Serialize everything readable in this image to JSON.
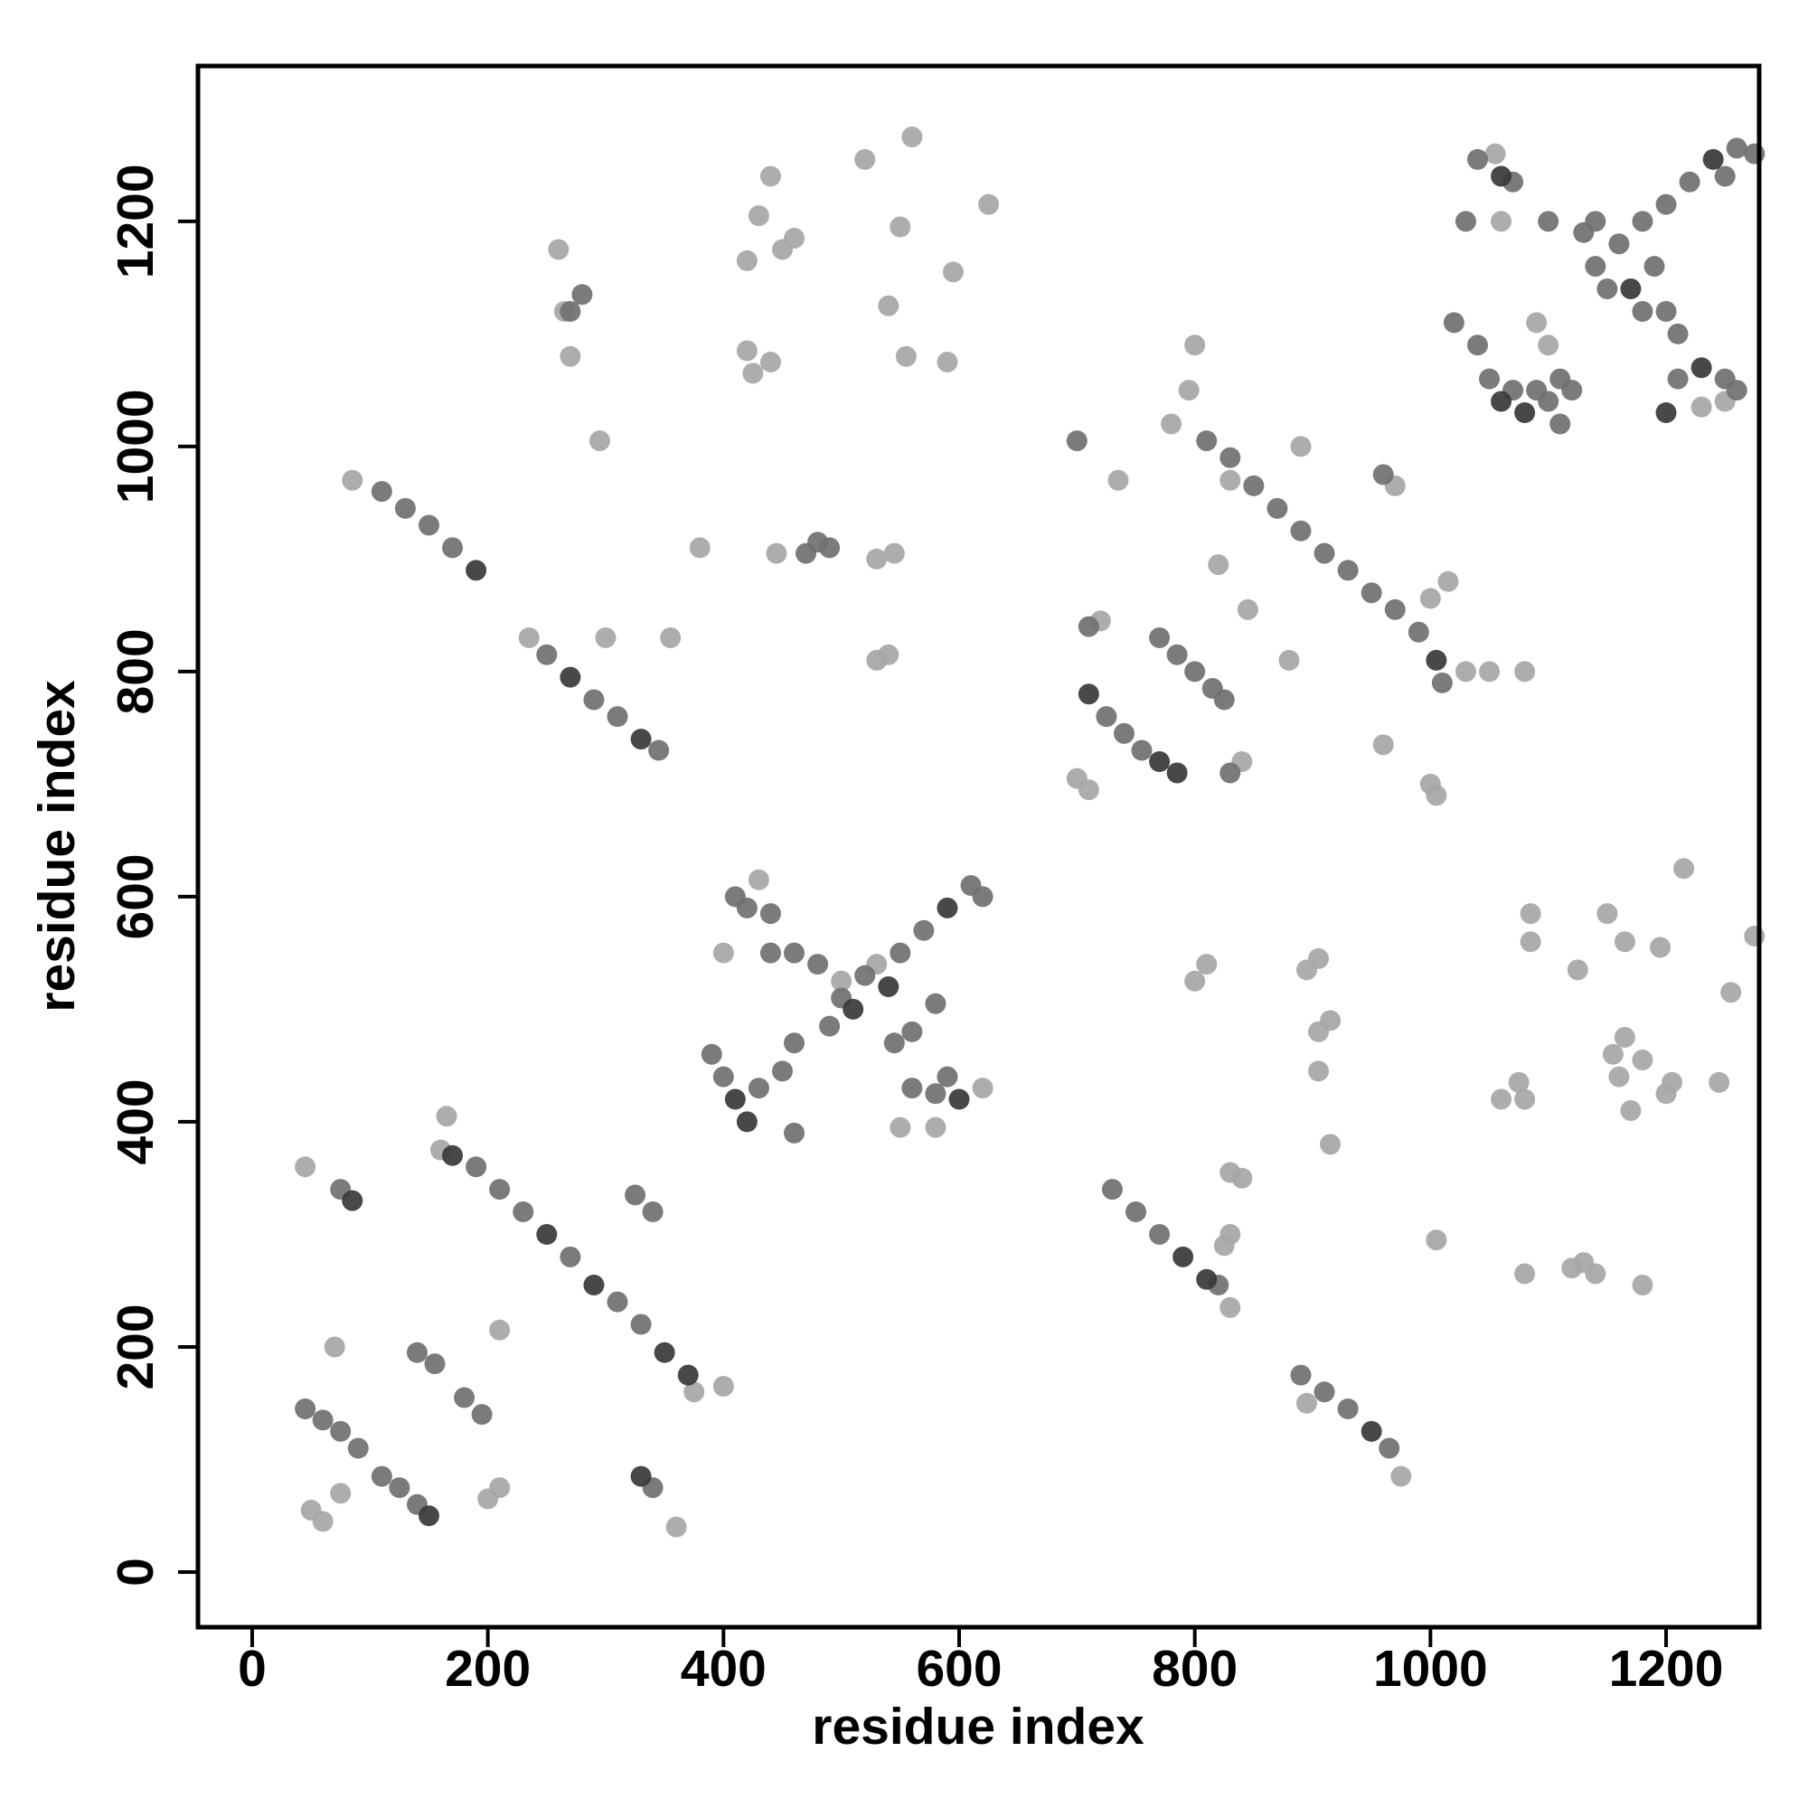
{
  "chart_data": {
    "type": "scatter",
    "x_label": "residue index",
    "y_label": "residue index",
    "xlim": [
      -46,
      1279
    ],
    "ylim": [
      -49,
      1338
    ],
    "xticks": [
      0,
      200,
      400,
      600,
      800,
      1000,
      1200
    ],
    "yticks": [
      0,
      200,
      400,
      600,
      800,
      1000,
      1200
    ],
    "series": [
      {
        "color": "#a6a6a6",
        "x": [
          400,
          375,
          360,
          70,
          200,
          210,
          45,
          50,
          60,
          75,
          165,
          160,
          210,
          85,
          235,
          300,
          355,
          260,
          265,
          270,
          295,
          420,
          440,
          430,
          450,
          460,
          420,
          425,
          440,
          520,
          560,
          550,
          540,
          595,
          625,
          555,
          590,
          380,
          445,
          530,
          545,
          530,
          540,
          530,
          500,
          430,
          400,
          620,
          580,
          550,
          800,
          810,
          830,
          840,
          830,
          825,
          830,
          975,
          895,
          905,
          895,
          905,
          915,
          905,
          915,
          1005,
          1080,
          1120,
          1140,
          1130,
          1180,
          1080,
          1060,
          1075,
          1085,
          1125,
          1150,
          1165,
          1195,
          1215,
          1205,
          1200,
          1245,
          1255,
          1275,
          1165,
          1155,
          1160,
          1170,
          1180,
          1085,
          800,
          795,
          780,
          735,
          830,
          890,
          970,
          720,
          820,
          845,
          880,
          840,
          700,
          710,
          960,
          1000,
          1005,
          1030,
          1050,
          1080,
          1015,
          1000,
          1055,
          1060,
          1090,
          1100,
          1230,
          1250
        ],
        "values": [
          165,
          160,
          40,
          200,
          65,
          75,
          360,
          55,
          45,
          70,
          405,
          375,
          215,
          970,
          830,
          830,
          830,
          1175,
          1120,
          1080,
          1005,
          1165,
          1240,
          1205,
          1175,
          1185,
          1085,
          1065,
          1075,
          1255,
          1275,
          1195,
          1125,
          1155,
          1215,
          1080,
          1075,
          910,
          905,
          900,
          905,
          810,
          815,
          540,
          525,
          615,
          550,
          430,
          395,
          395,
          525,
          540,
          355,
          350,
          300,
          290,
          235,
          85,
          150,
          545,
          535,
          480,
          490,
          445,
          380,
          295,
          265,
          270,
          265,
          275,
          255,
          420,
          420,
          435,
          560,
          535,
          585,
          560,
          555,
          625,
          435,
          425,
          435,
          515,
          565,
          475,
          460,
          440,
          410,
          455,
          585,
          1090,
          1050,
          1020,
          970,
          970,
          1000,
          965,
          845,
          895,
          855,
          810,
          720,
          705,
          695,
          735,
          700,
          690,
          800,
          800,
          800,
          880,
          865,
          1260,
          1200,
          1110,
          1090,
          1035,
          1040
        ]
      },
      {
        "color": "#707070",
        "x": [
          190,
          210,
          230,
          270,
          310,
          330,
          325,
          340,
          340,
          45,
          60,
          75,
          90,
          110,
          125,
          140,
          140,
          155,
          180,
          195,
          75,
          110,
          130,
          150,
          170,
          250,
          290,
          310,
          345,
          280,
          270,
          490,
          480,
          470,
          550,
          570,
          610,
          620,
          500,
          520,
          480,
          560,
          545,
          390,
          400,
          430,
          450,
          460,
          460,
          420,
          410,
          440,
          440,
          460,
          560,
          580,
          590,
          580,
          490,
          730,
          750,
          770,
          820,
          890,
          910,
          930,
          965,
          810,
          830,
          850,
          870,
          890,
          910,
          930,
          950,
          970,
          990,
          1010,
          725,
          740,
          755,
          710,
          770,
          785,
          800,
          815,
          825,
          830,
          700,
          960,
          1180,
          1200,
          1220,
          1260,
          1275,
          1250,
          1140,
          1160,
          1180,
          1190,
          1150,
          1130,
          1140,
          1200,
          1210,
          1040,
          1070,
          1030,
          1100,
          1020,
          1040,
          1050,
          1070,
          1090,
          1100,
          1110,
          1110,
          1120,
          1210,
          1250,
          1260
        ],
        "values": [
          360,
          340,
          320,
          280,
          240,
          220,
          335,
          320,
          75,
          145,
          135,
          125,
          110,
          85,
          75,
          60,
          195,
          185,
          155,
          140,
          340,
          960,
          945,
          930,
          910,
          815,
          775,
          760,
          730,
          1135,
          1120,
          910,
          915,
          905,
          550,
          570,
          610,
          600,
          510,
          530,
          540,
          480,
          470,
          460,
          440,
          430,
          445,
          470,
          390,
          590,
          600,
          585,
          550,
          550,
          430,
          425,
          440,
          505,
          485,
          340,
          320,
          300,
          255,
          175,
          160,
          145,
          110,
          1005,
          990,
          965,
          945,
          925,
          905,
          890,
          870,
          855,
          835,
          790,
          760,
          745,
          730,
          840,
          830,
          815,
          800,
          785,
          775,
          710,
          1005,
          975,
          1200,
          1215,
          1235,
          1265,
          1260,
          1240,
          1160,
          1180,
          1120,
          1160,
          1140,
          1190,
          1200,
          1120,
          1100,
          1255,
          1235,
          1200,
          1200,
          1110,
          1090,
          1060,
          1050,
          1050,
          1040,
          1020,
          1060,
          1050,
          1060,
          1060,
          1050
        ]
      },
      {
        "color": "#383838",
        "x": [
          170,
          250,
          290,
          350,
          370,
          85,
          150,
          330,
          190,
          330,
          270,
          420,
          410,
          540,
          510,
          590,
          600,
          810,
          790,
          950,
          770,
          785,
          710,
          1005,
          1170,
          1240,
          1060,
          1080,
          1230,
          1060,
          1200
        ],
        "values": [
          370,
          300,
          255,
          195,
          175,
          330,
          50,
          85,
          890,
          740,
          795,
          400,
          420,
          520,
          500,
          590,
          420,
          260,
          280,
          125,
          720,
          710,
          780,
          810,
          1140,
          1255,
          1040,
          1030,
          1070,
          1240,
          1030
        ]
      }
    ]
  }
}
